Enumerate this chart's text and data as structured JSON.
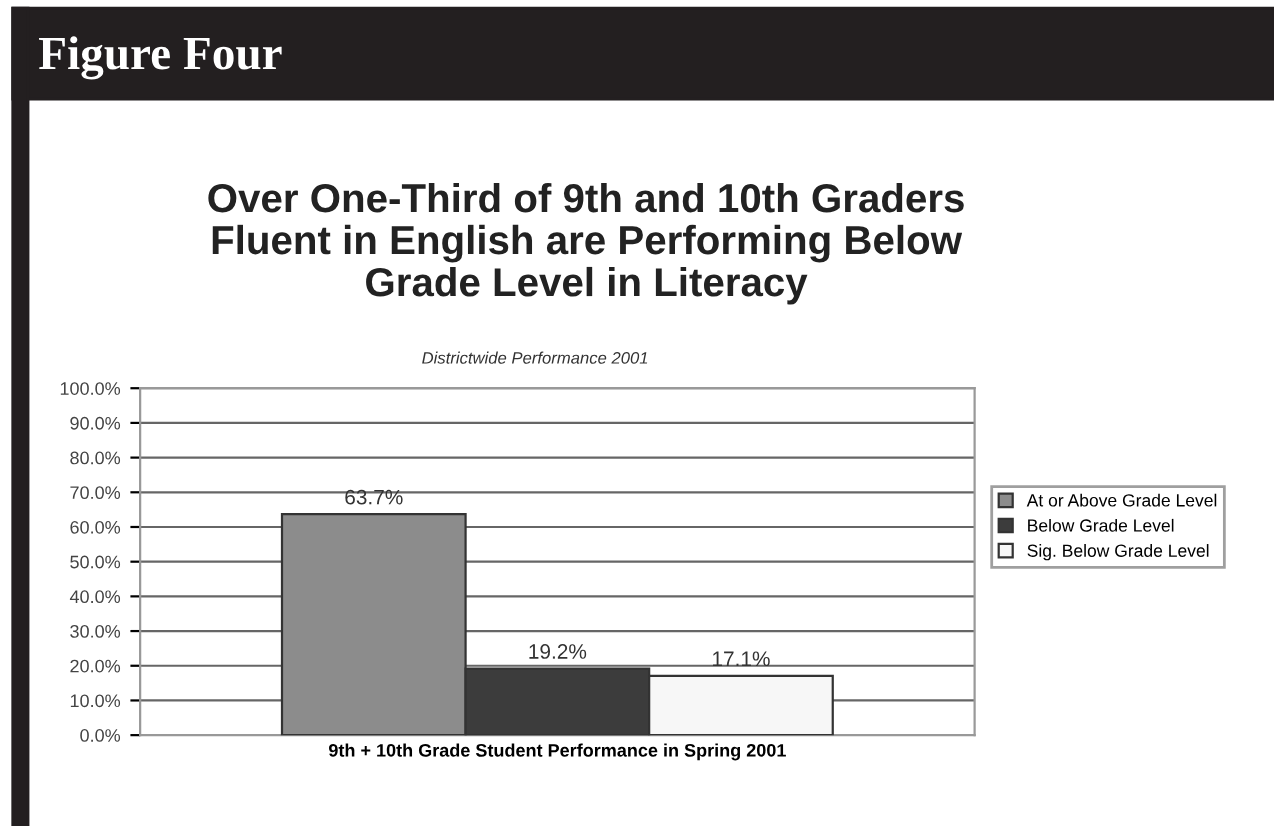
{
  "chart_data": {
    "type": "bar",
    "title": "Over One-Third of 9th and 10th Graders\nFluent in English are Performing Below\nGrade Level in Literacy",
    "subtitle": "Districtwide Performance 2001",
    "annotations": [
      "Figure Four"
    ],
    "categories": [
      "9th + 10th Grade Student Performance in Spring 2001"
    ],
    "series": [
      {
        "name": "At or Above Grade Level",
        "color": "#8c8c8c",
        "values": [
          63.7
        ]
      },
      {
        "name": "Below Grade Level",
        "color": "#3c3c3c",
        "values": [
          19.2
        ]
      },
      {
        "name": "Sig. Below Grade Level",
        "color": "#f7f7f7",
        "values": [
          17.1
        ]
      }
    ],
    "ylim": [
      0,
      100
    ],
    "yticks": [
      {
        "value": 0,
        "label": "0.0%"
      },
      {
        "value": 10,
        "label": "10.0%"
      },
      {
        "value": 20,
        "label": "20.0%"
      },
      {
        "value": 30,
        "label": "30.0%"
      },
      {
        "value": 40,
        "label": "40.0%"
      },
      {
        "value": 50,
        "label": "50.0%"
      },
      {
        "value": 60,
        "label": "60.0%"
      },
      {
        "value": 70,
        "label": "70.0%"
      },
      {
        "value": 80,
        "label": "80.0%"
      },
      {
        "value": 90,
        "label": "90.0%"
      },
      {
        "value": 100,
        "label": "100.0%"
      }
    ],
    "value_labels": [
      "63.7%",
      "19.2%",
      "17.1%"
    ],
    "grid": "y",
    "legend": "right"
  }
}
